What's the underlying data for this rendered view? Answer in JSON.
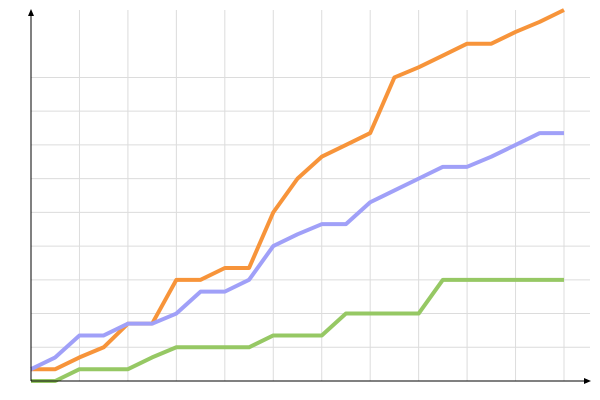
{
  "chart_data": {
    "type": "line",
    "x": [
      0,
      1,
      2,
      3,
      4,
      5,
      6,
      7,
      8,
      9,
      10,
      11,
      12,
      13,
      14,
      15,
      16,
      17,
      18,
      19,
      20,
      21,
      22
    ],
    "series": [
      {
        "color": "#f7943a",
        "values": [
          0.35,
          0.35,
          0.7,
          1,
          1.7,
          1.7,
          3,
          3,
          3.35,
          3.35,
          5,
          6,
          6.65,
          7,
          7.35,
          9,
          9.3,
          9.65,
          10,
          10,
          10.35,
          10.65,
          11
        ]
      },
      {
        "color": "#a0a0f8",
        "values": [
          0.35,
          0.7,
          1.35,
          1.35,
          1.7,
          1.7,
          2,
          2.65,
          2.65,
          3,
          4,
          4.35,
          4.65,
          4.65,
          5.3,
          5.65,
          6,
          6.35,
          6.35,
          6.65,
          7,
          7.35,
          7.35
        ]
      },
      {
        "color": "#96c864",
        "values": [
          0,
          0,
          0.35,
          0.35,
          0.35,
          0.7,
          1,
          1,
          1,
          1,
          1.35,
          1.35,
          1.35,
          2,
          2,
          2,
          2,
          3,
          3,
          3,
          3,
          3,
          3
        ]
      }
    ],
    "xlim": [
      0,
      22
    ],
    "ylim": [
      0,
      11
    ],
    "xticks": [
      2,
      4,
      6,
      8,
      10,
      12,
      14,
      16,
      18,
      20,
      22
    ],
    "yticks": [
      1,
      2,
      3,
      4,
      5,
      6,
      7,
      8,
      9
    ],
    "grid": true
  }
}
